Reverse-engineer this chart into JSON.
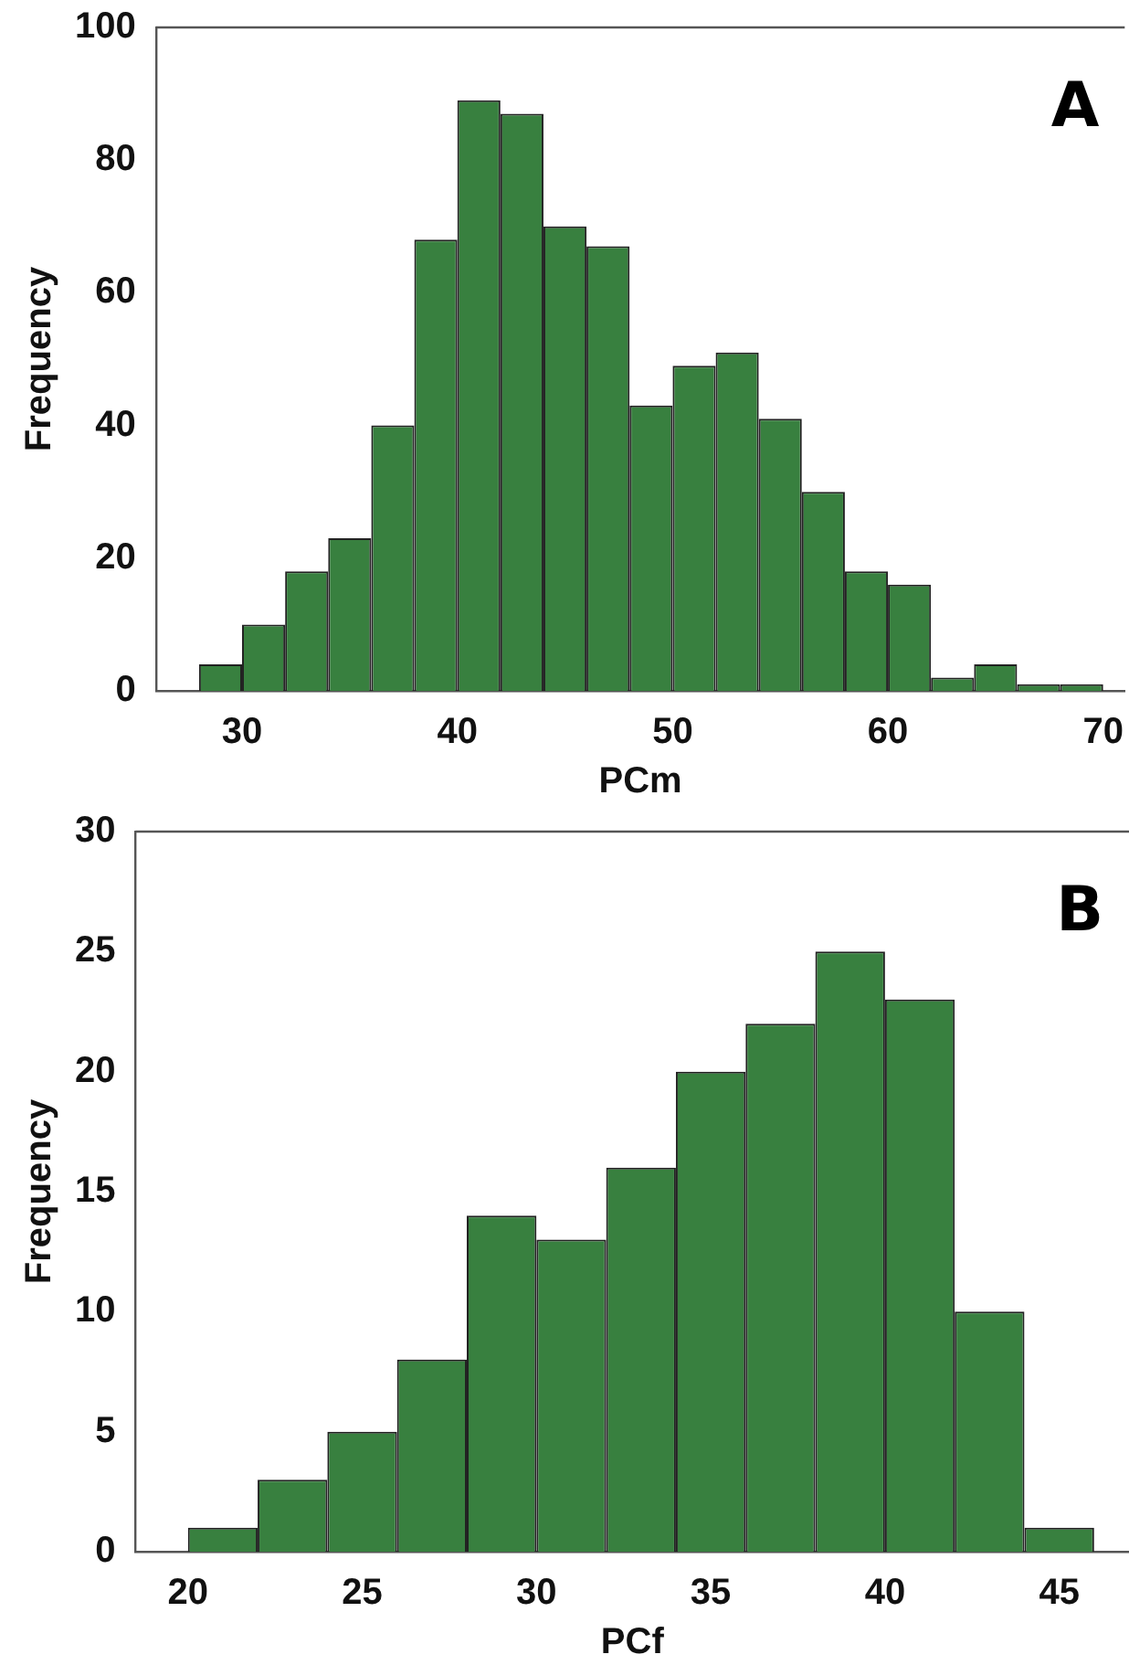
{
  "chart_data": [
    {
      "type": "histogram",
      "xlabel": "PCm",
      "ylabel": "Frequency",
      "annotations": [
        "A"
      ],
      "color": "#38803f",
      "bins": [
        28,
        30,
        32,
        34,
        36,
        38,
        40,
        42,
        44,
        46,
        48,
        50,
        52,
        54,
        56,
        58,
        60,
        62,
        64,
        66,
        68,
        70
      ],
      "values": [
        4,
        10,
        18,
        23,
        40,
        68,
        89,
        87,
        70,
        67,
        43,
        49,
        51,
        41,
        30,
        18,
        16,
        2,
        4,
        1,
        1
      ],
      "xlim": [
        26,
        71
      ],
      "xticks": [
        30,
        40,
        50,
        60,
        70
      ],
      "ylim": [
        0,
        100
      ],
      "yticks": [
        0,
        20,
        40,
        60,
        80,
        100
      ],
      "grid": false,
      "legend": false
    },
    {
      "type": "histogram",
      "xlabel": "PCf",
      "ylabel": "Frequency",
      "annotations": [
        "B"
      ],
      "color": "#38803f",
      "bins": [
        20,
        22,
        24,
        26,
        28,
        30,
        32,
        34,
        36,
        38,
        40,
        42,
        44,
        46
      ],
      "values": [
        1,
        3,
        5,
        8,
        14,
        13,
        16,
        20,
        22,
        25,
        23,
        10,
        1
      ],
      "xlim": [
        18.5,
        47
      ],
      "xticks": [
        20,
        25,
        30,
        35,
        40,
        45
      ],
      "ylim": [
        0,
        30
      ],
      "yticks": [
        0,
        5,
        10,
        15,
        20,
        25,
        30
      ],
      "grid": false,
      "legend": false
    }
  ]
}
